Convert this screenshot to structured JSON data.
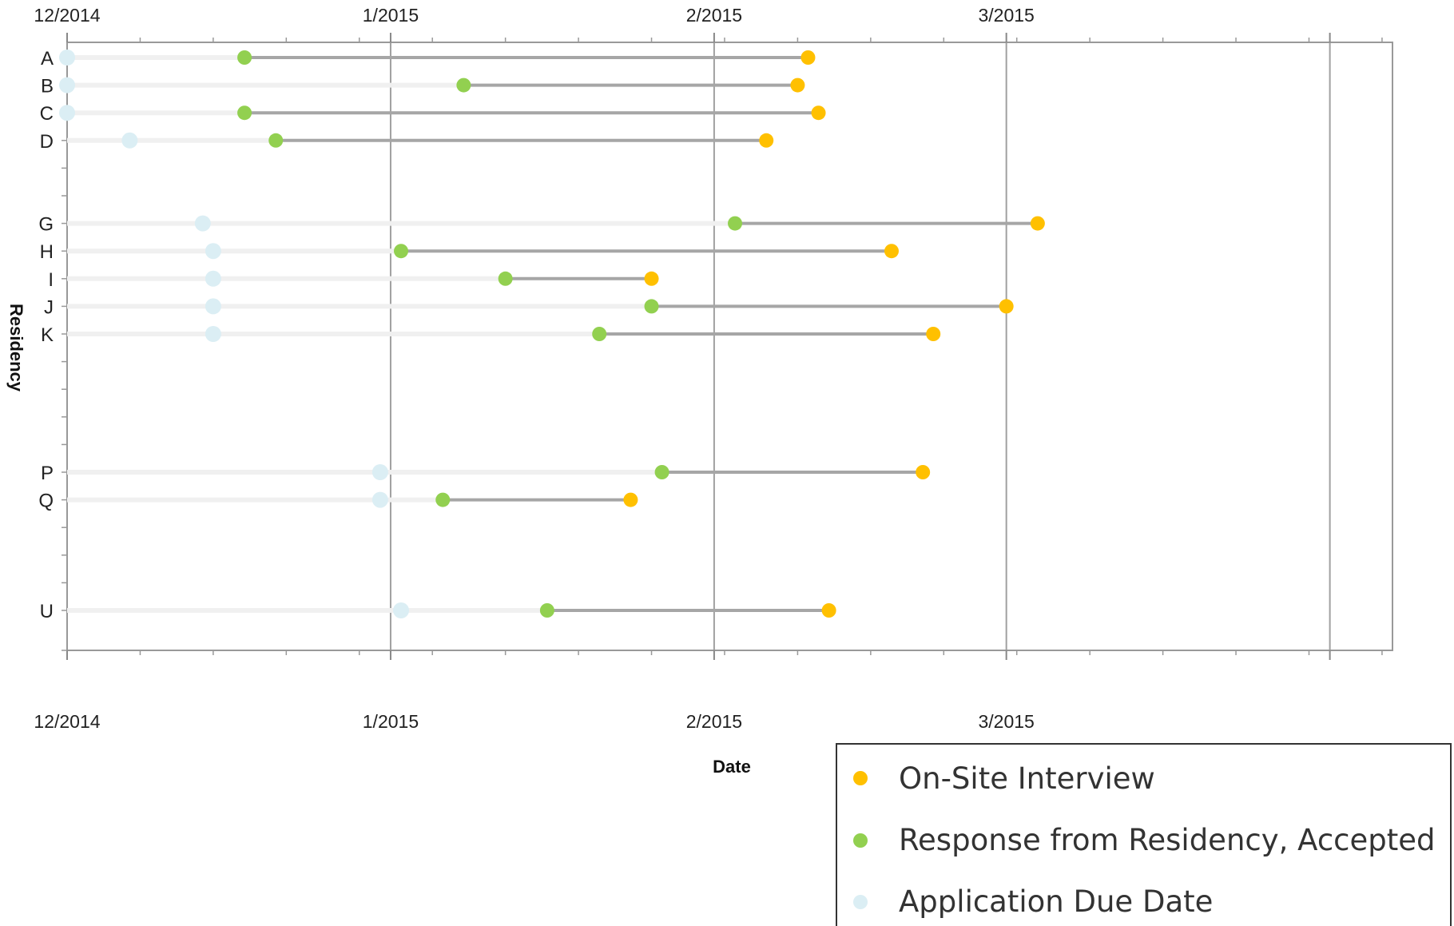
{
  "chart_data": {
    "type": "scatter",
    "title": "",
    "xlabel": "Date",
    "ylabel": "Residency",
    "x_ticks": [
      "12/2014",
      "1/2015",
      "2/2015",
      "3/2015"
    ],
    "xlim": [
      "2014-12-01",
      "2015-04-07"
    ],
    "rows": [
      "A",
      "B",
      "C",
      "D",
      "",
      "",
      "G",
      "H",
      "I",
      "J",
      "K",
      "",
      "",
      "",
      "",
      "P",
      "Q",
      "",
      "",
      "",
      "U"
    ],
    "series": [
      {
        "name": "On-Site Interview",
        "color": "#ffc000",
        "points": [
          {
            "row": "A",
            "x": "2015-02-10"
          },
          {
            "row": "B",
            "x": "2015-02-09"
          },
          {
            "row": "C",
            "x": "2015-02-11"
          },
          {
            "row": "D",
            "x": "2015-02-06"
          },
          {
            "row": "G",
            "x": "2015-03-04"
          },
          {
            "row": "H",
            "x": "2015-02-18"
          },
          {
            "row": "I",
            "x": "2015-01-26"
          },
          {
            "row": "J",
            "x": "2015-03-01"
          },
          {
            "row": "K",
            "x": "2015-02-22"
          },
          {
            "row": "P",
            "x": "2015-02-21"
          },
          {
            "row": "Q",
            "x": "2015-01-24"
          },
          {
            "row": "U",
            "x": "2015-02-12"
          }
        ]
      },
      {
        "name": "Response from Residency, Accepted",
        "color": "#92d050",
        "points": [
          {
            "row": "A",
            "x": "2014-12-18"
          },
          {
            "row": "B",
            "x": "2015-01-08"
          },
          {
            "row": "C",
            "x": "2014-12-18"
          },
          {
            "row": "D",
            "x": "2014-12-21"
          },
          {
            "row": "G",
            "x": "2015-02-03"
          },
          {
            "row": "H",
            "x": "2015-01-02"
          },
          {
            "row": "I",
            "x": "2015-01-12"
          },
          {
            "row": "J",
            "x": "2015-01-26"
          },
          {
            "row": "K",
            "x": "2015-01-21"
          },
          {
            "row": "P",
            "x": "2015-01-27"
          },
          {
            "row": "Q",
            "x": "2015-01-06"
          },
          {
            "row": "U",
            "x": "2015-01-16"
          }
        ]
      },
      {
        "name": "Application Due Date",
        "color": "#dbeef4",
        "points": [
          {
            "row": "A",
            "x": "2014-12-01"
          },
          {
            "row": "B",
            "x": "2014-12-01"
          },
          {
            "row": "C",
            "x": "2014-12-01"
          },
          {
            "row": "D",
            "x": "2014-12-07"
          },
          {
            "row": "G",
            "x": "2014-12-14"
          },
          {
            "row": "H",
            "x": "2014-12-15"
          },
          {
            "row": "I",
            "x": "2014-12-15"
          },
          {
            "row": "J",
            "x": "2014-12-15"
          },
          {
            "row": "K",
            "x": "2014-12-15"
          },
          {
            "row": "P",
            "x": "2014-12-31"
          },
          {
            "row": "Q",
            "x": "2014-12-31"
          },
          {
            "row": "U",
            "x": "2015-01-02"
          }
        ]
      }
    ],
    "colors": {
      "connector_accepted": "#a6a6a6",
      "connector_pending": "#f0f0f0",
      "gridline": "#a0a0a0",
      "frame": "#999999"
    },
    "grid": "vertical at month ticks",
    "legend_position": "bottom-right"
  }
}
